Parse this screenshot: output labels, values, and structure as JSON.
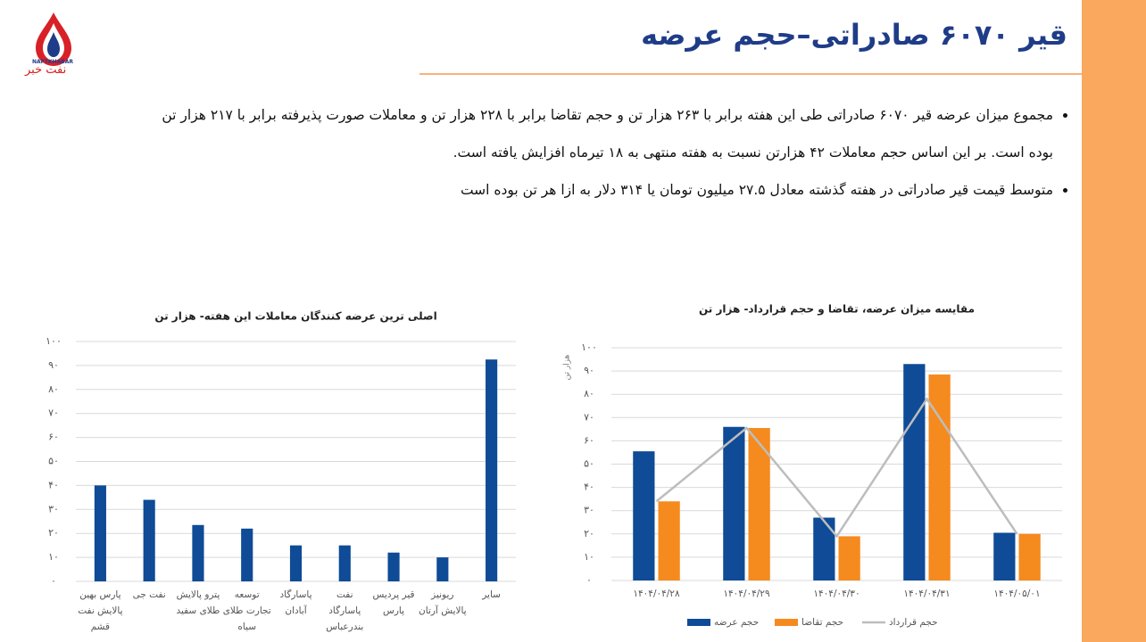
{
  "slide": {
    "title": "قیر ۶۰۷۰ صادراتی–حجم عرضه",
    "logo_latin": "NAFTKHABAR",
    "logo_text": "نفت خبر",
    "bullets": [
      "مجموع میزان عرضه قیر ۶۰۷۰ صادراتی طی این هفته برابر با ۲۶۳ هزار تن و حجم تقاضا برابر با ۲۲۸ هزار تن و معاملات صورت پذیرفته برابر با ۲۱۷ هزار تن بوده است. بر این اساس حجم معاملات ۴۲ هزارتن نسبت به هفته منتهی به ۱۸ تیرماه افزایش یافته است.",
      "متوسط قیمت قیر صادراتی در هفته گذشته معادل ۲۷.۵ میلیون تومان یا ۳۱۴ دلار به ازا هر تن بوده است"
    ]
  },
  "chart_data": [
    {
      "type": "bar",
      "title": "اصلی ترین عرضه کنندگان معاملات این هفته- هزار تن",
      "categories": [
        "پارس بهین پالایش نفت قشم",
        "نفت جی",
        "پترو پالایش طلای سفید",
        "توسعه تجارت طلای سیاه",
        "پاسارگاد آبادان",
        "نفت پاسارگاد بندرعباس",
        "قیر پردیس پارس",
        "ریونیز پالایش آرتان",
        "سایر"
      ],
      "values": [
        40,
        34,
        23.5,
        22,
        15,
        15,
        12,
        10,
        92.5
      ],
      "color": "#0f4b96",
      "ylim": [
        0,
        100
      ],
      "yticks": [
        {
          "value": 0,
          "label": "۰"
        },
        {
          "value": 10,
          "label": "۱۰"
        },
        {
          "value": 20,
          "label": "۲۰"
        },
        {
          "value": 30,
          "label": "۳۰"
        },
        {
          "value": 40,
          "label": "۴۰"
        },
        {
          "value": 50,
          "label": "۵۰"
        },
        {
          "value": 60,
          "label": "۶۰"
        },
        {
          "value": 70,
          "label": "۷۰"
        },
        {
          "value": 80,
          "label": "۸۰"
        },
        {
          "value": 90,
          "label": "۹۰"
        },
        {
          "value": 100,
          "label": "۱۰۰"
        }
      ],
      "grid": true
    },
    {
      "type": "bar",
      "title": "مقایسه میزان عرضه، تقاضا و حجم قرارداد-  هزار تن",
      "ylabel": "هزار تن",
      "categories": [
        "۱۴۰۴/۰۴/۲۸",
        "۱۴۰۴/۰۴/۲۹",
        "۱۴۰۴/۰۴/۳۰",
        "۱۴۰۴/۰۴/۳۱",
        "۱۴۰۴/۰۵/۰۱"
      ],
      "series": [
        {
          "name": "حجم عرضه",
          "type": "bar",
          "color": "#0f4b96",
          "values": [
            55.5,
            66,
            27,
            93,
            20.5
          ]
        },
        {
          "name": "حجم تقاضا",
          "type": "bar",
          "color": "#f58a1f",
          "values": [
            34,
            65.5,
            19,
            88.5,
            20
          ]
        },
        {
          "name": "حجم قرارداد",
          "type": "line",
          "color": "#bdbdbd",
          "values": [
            34,
            65.5,
            19,
            78,
            20
          ]
        }
      ],
      "ylim": [
        0,
        100
      ],
      "yticks": [
        {
          "value": 0,
          "label": "۰"
        },
        {
          "value": 10,
          "label": "۱۰"
        },
        {
          "value": 20,
          "label": "۲۰"
        },
        {
          "value": 30,
          "label": "۳۰"
        },
        {
          "value": 40,
          "label": "۴۰"
        },
        {
          "value": 50,
          "label": "۵۰"
        },
        {
          "value": 60,
          "label": "۶۰"
        },
        {
          "value": 70,
          "label": "۷۰"
        },
        {
          "value": 80,
          "label": "۸۰"
        },
        {
          "value": 90,
          "label": "۹۰"
        },
        {
          "value": 100,
          "label": "۱۰۰"
        }
      ],
      "grid": true,
      "legend": "bottom"
    }
  ]
}
